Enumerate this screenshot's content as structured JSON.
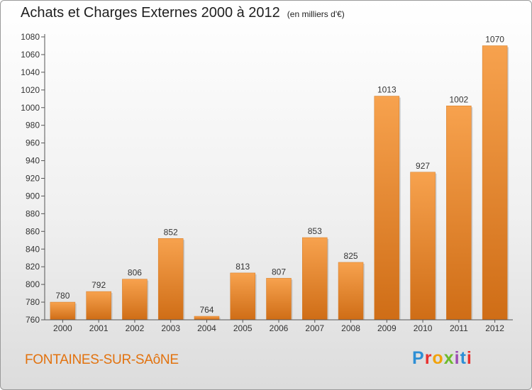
{
  "header": {
    "title": "Achats et Charges Externes 2000 à 2012",
    "unit": "(en milliers d'€)"
  },
  "footer": {
    "city": "FONTAINES-SUR-SAôNE",
    "logo": "Proxiti"
  },
  "colors": {
    "bar_top": "#f7a24e",
    "bar_bottom": "#cf6d16",
    "city_text": "#e2720e"
  },
  "chart_data": {
    "type": "bar",
    "title": "Achats et Charges Externes 2000 à 2012",
    "categories": [
      "2000",
      "2001",
      "2002",
      "2003",
      "2004",
      "2005",
      "2006",
      "2007",
      "2008",
      "2009",
      "2010",
      "2011",
      "2012"
    ],
    "values": [
      780,
      792,
      806,
      852,
      764,
      813,
      807,
      853,
      825,
      1013,
      927,
      1002,
      1070
    ],
    "ylim": [
      760,
      1080
    ],
    "yticks": [
      760,
      780,
      800,
      820,
      840,
      860,
      880,
      900,
      920,
      940,
      960,
      980,
      1000,
      1020,
      1040,
      1060,
      1080
    ],
    "grid": false,
    "data_labels": true
  }
}
